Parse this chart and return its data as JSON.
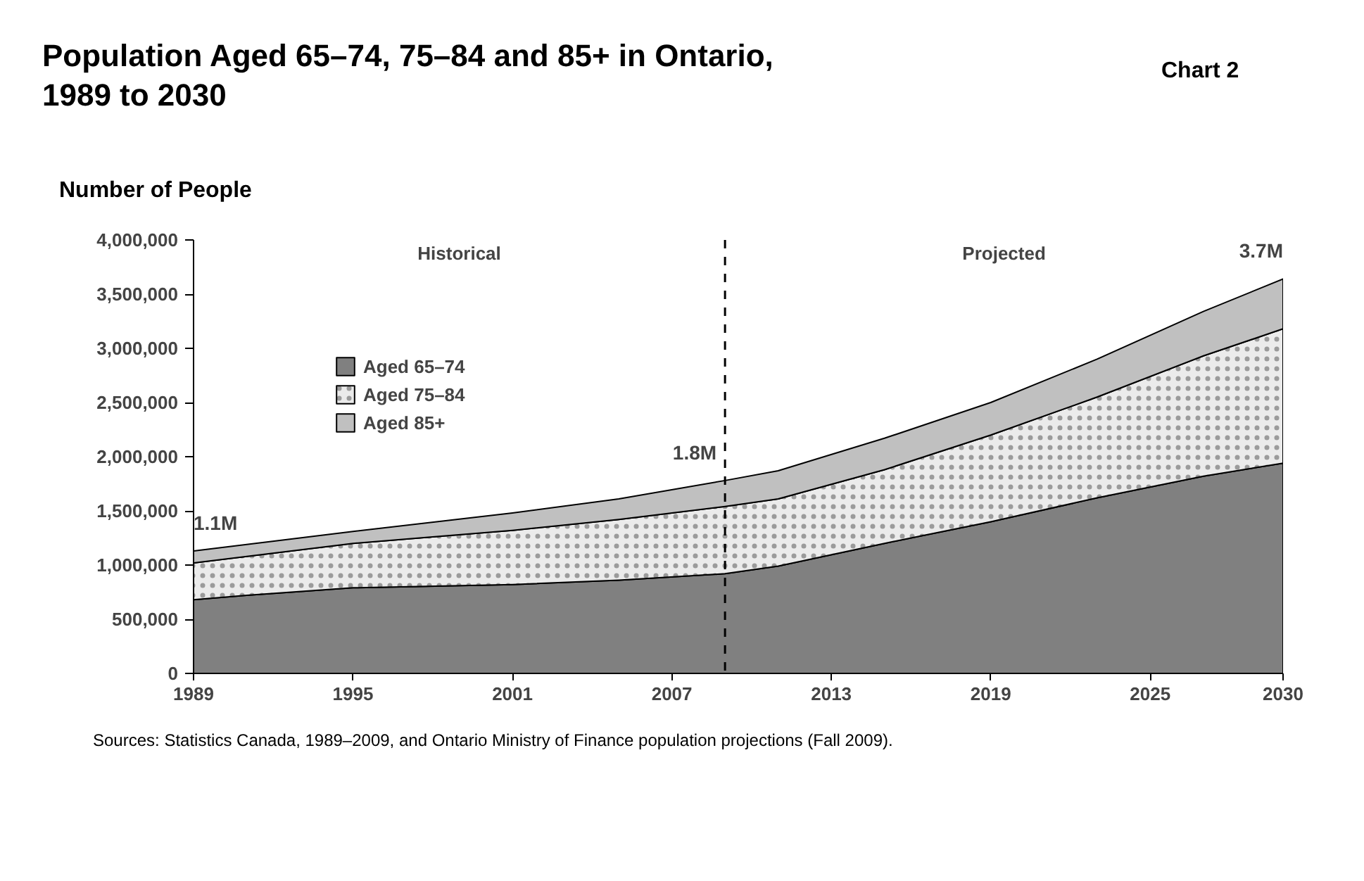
{
  "chart_data": {
    "type": "area",
    "stacked": true,
    "title": "Population Aged 65–74, 75–84 and 85+ in Ontario,\n1989 to 2030",
    "ylabel": "Number of People",
    "x": [
      1989,
      1991,
      1995,
      2001,
      2005,
      2009,
      2011,
      2015,
      2019,
      2023,
      2027,
      2030
    ],
    "series": [
      {
        "name": "Aged 65–74",
        "color": "#808080",
        "values": [
          680000,
          720000,
          790000,
          820000,
          860000,
          920000,
          990000,
          1200000,
          1400000,
          1620000,
          1820000,
          1940000
        ]
      },
      {
        "name": "Aged 75–84",
        "color": "#ebebeb",
        "values": [
          340000,
          360000,
          410000,
          500000,
          560000,
          620000,
          620000,
          680000,
          800000,
          930000,
          1110000,
          1240000
        ]
      },
      {
        "name": "Aged 85+",
        "color": "#c0c0c0",
        "values": [
          110000,
          110000,
          110000,
          160000,
          190000,
          240000,
          260000,
          290000,
          300000,
          350000,
          410000,
          460000
        ]
      }
    ],
    "xlim": [
      1989,
      2030
    ],
    "xticks": [
      1989,
      1995,
      2001,
      2007,
      2013,
      2019,
      2025,
      2030
    ],
    "ylim": [
      0,
      4000000
    ],
    "yticks": [
      {
        "value": 0,
        "label": "0"
      },
      {
        "value": 500000,
        "label": "500,000"
      },
      {
        "value": 1000000,
        "label": "1,000,000"
      },
      {
        "value": 1500000,
        "label": "1,500,000"
      },
      {
        "value": 2000000,
        "label": "2,000,000"
      },
      {
        "value": 2500000,
        "label": "2,500,000"
      },
      {
        "value": 3000000,
        "label": "3,000,000"
      },
      {
        "value": 3500000,
        "label": "3,500,000"
      },
      {
        "value": 4000000,
        "label": "4,000,000"
      }
    ],
    "ref_lines": [
      {
        "axis": "x",
        "value": 2009,
        "line_style": "dashed",
        "color": "#000000"
      }
    ],
    "annotations": [
      "Chart 2",
      "Historical",
      "Projected",
      {
        "text": "1.1M",
        "x": 1989,
        "y": 1130000
      },
      {
        "text": "1.8M",
        "x": 2009,
        "y": 1780000
      },
      {
        "text": "3.7M",
        "x": 2030,
        "y": 3640000
      },
      "Sources: Statistics Canada, 1989–2009, and Ontario Ministry of Finance population projections (Fall 2009)."
    ],
    "legend": "top left",
    "grid": false
  }
}
